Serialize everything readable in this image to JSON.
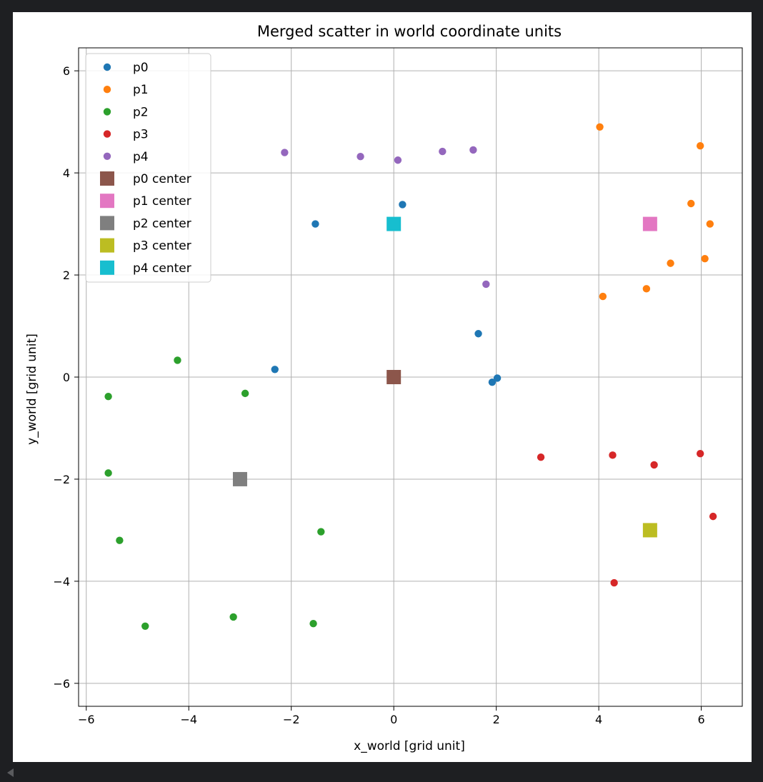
{
  "chart_data": {
    "type": "scatter",
    "title": "Merged scatter in world coordinate units",
    "xlabel": "x_world [grid unit]",
    "ylabel": "y_world [grid unit]",
    "xlim": [
      -6.15,
      6.8
    ],
    "ylim": [
      -6.45,
      6.45
    ],
    "xticks": [
      -6,
      -4,
      -2,
      0,
      2,
      4,
      6
    ],
    "yticks": [
      -6,
      -4,
      -2,
      0,
      2,
      4,
      6
    ],
    "xtick_labels": [
      "−6",
      "−4",
      "−2",
      "0",
      "2",
      "4",
      "6"
    ],
    "ytick_labels": [
      "−6",
      "−4",
      "−2",
      "0",
      "2",
      "4",
      "6"
    ],
    "grid": true,
    "legend_position": "top-left",
    "series": [
      {
        "name": "p0",
        "marker": "circle",
        "color": "#1f77b4",
        "points": [
          [
            -1.53,
            3.0
          ],
          [
            0.17,
            3.38
          ],
          [
            1.65,
            0.85
          ],
          [
            -2.32,
            0.15
          ],
          [
            1.92,
            -0.1
          ],
          [
            2.02,
            -0.02
          ]
        ]
      },
      {
        "name": "p1",
        "marker": "circle",
        "color": "#ff7f0e",
        "points": [
          [
            4.02,
            4.9
          ],
          [
            5.98,
            4.53
          ],
          [
            5.8,
            3.4
          ],
          [
            6.17,
            3.0
          ],
          [
            6.07,
            2.32
          ],
          [
            5.4,
            2.23
          ],
          [
            4.93,
            1.73
          ],
          [
            4.08,
            1.58
          ]
        ]
      },
      {
        "name": "p2",
        "marker": "circle",
        "color": "#2ca02c",
        "points": [
          [
            -4.22,
            0.33
          ],
          [
            -5.57,
            -0.38
          ],
          [
            -2.9,
            -0.32
          ],
          [
            -5.57,
            -1.88
          ],
          [
            -5.35,
            -3.2
          ],
          [
            -1.42,
            -3.03
          ],
          [
            -4.85,
            -4.88
          ],
          [
            -3.13,
            -4.7
          ],
          [
            -1.57,
            -4.83
          ]
        ]
      },
      {
        "name": "p3",
        "marker": "circle",
        "color": "#d62728",
        "points": [
          [
            2.87,
            -1.57
          ],
          [
            4.27,
            -1.53
          ],
          [
            5.08,
            -1.72
          ],
          [
            5.98,
            -1.5
          ],
          [
            6.23,
            -2.73
          ],
          [
            4.3,
            -4.03
          ]
        ]
      },
      {
        "name": "p4",
        "marker": "circle",
        "color": "#9467bd",
        "points": [
          [
            -2.13,
            4.4
          ],
          [
            -0.65,
            4.32
          ],
          [
            0.08,
            4.25
          ],
          [
            0.95,
            4.42
          ],
          [
            1.55,
            4.45
          ],
          [
            1.8,
            1.82
          ]
        ]
      },
      {
        "name": "p0 center",
        "marker": "square",
        "color": "#8c564b",
        "points": [
          [
            0,
            0
          ]
        ]
      },
      {
        "name": "p1 center",
        "marker": "square",
        "color": "#e377c2",
        "points": [
          [
            5,
            3
          ]
        ]
      },
      {
        "name": "p2 center",
        "marker": "square",
        "color": "#7f7f7f",
        "points": [
          [
            -3,
            -2
          ]
        ]
      },
      {
        "name": "p3 center",
        "marker": "square",
        "color": "#bcbd22",
        "points": [
          [
            5,
            -3
          ]
        ]
      },
      {
        "name": "p4 center",
        "marker": "square",
        "color": "#17becf",
        "points": [
          [
            0,
            3
          ]
        ]
      }
    ]
  }
}
